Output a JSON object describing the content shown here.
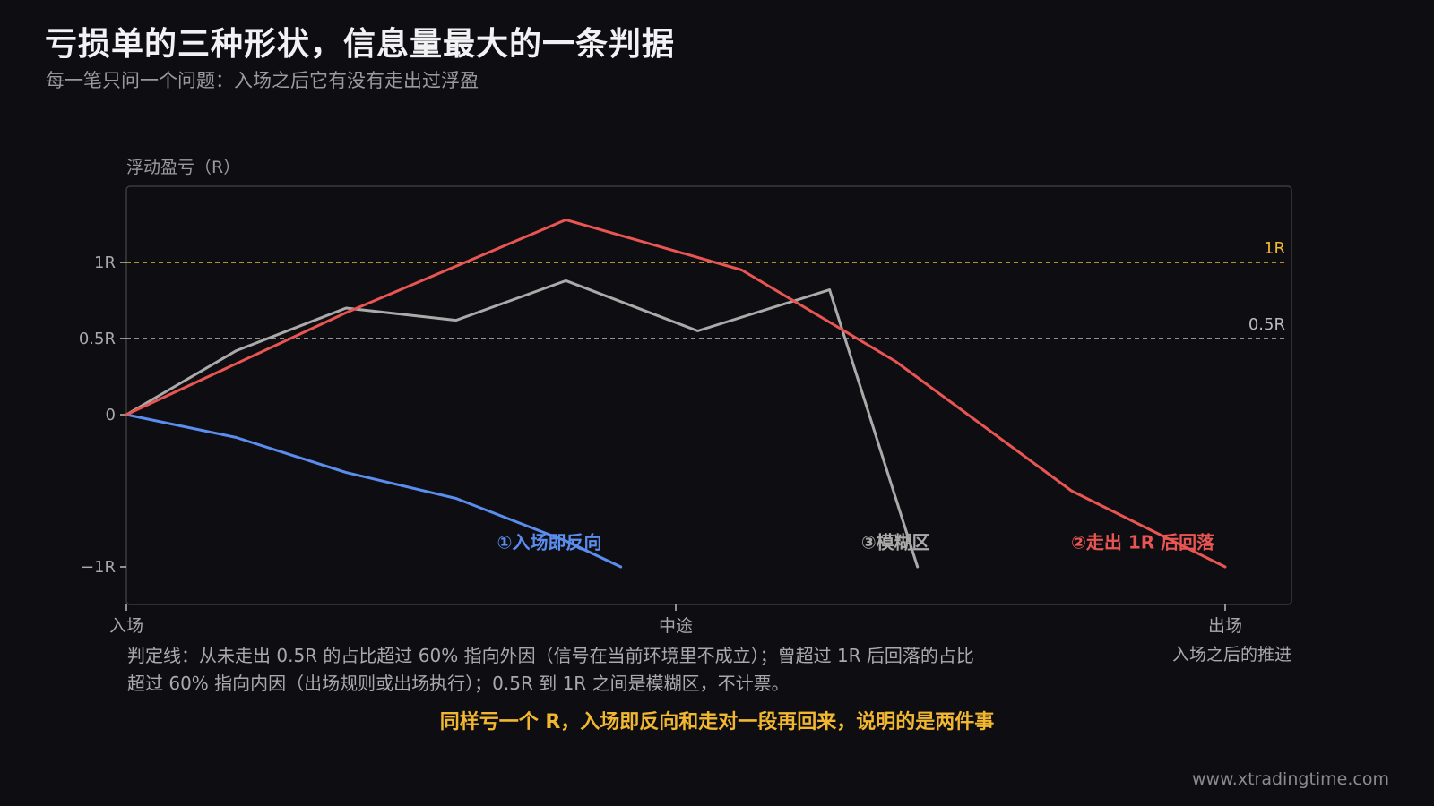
{
  "header": {
    "title": "亏损单的三种形状，信息量最大的一条判据",
    "subtitle": "每一笔只问一个问题：入场之后它有没有走出过浮盈"
  },
  "chart_data": {
    "type": "line",
    "ylabel": "浮动盈亏（R）",
    "xlabel": "入场之后的推进",
    "x_ticks": [
      {
        "x": 0,
        "label": "入场"
      },
      {
        "x": 0.5,
        "label": "中途"
      },
      {
        "x": 1,
        "label": "出场"
      }
    ],
    "y_ticks": [
      {
        "y": 1,
        "label": "1R"
      },
      {
        "y": 0.5,
        "label": "0.5R"
      },
      {
        "y": 0,
        "label": "0"
      },
      {
        "y": -1,
        "label": "−1R"
      }
    ],
    "xlim": [
      0,
      1.06
    ],
    "ylim": [
      -1.25,
      1.5
    ],
    "reference_lines": [
      {
        "y": 1,
        "label": "1R",
        "color": "#f2b731"
      },
      {
        "y": 0.5,
        "label": "0.5R",
        "color": "#bbbbbb"
      }
    ],
    "series": [
      {
        "name": "①入场即反向",
        "color": "#5b8def",
        "points": [
          [
            0,
            0
          ],
          [
            0.1,
            -0.15
          ],
          [
            0.2,
            -0.38
          ],
          [
            0.3,
            -0.55
          ],
          [
            0.4,
            -0.83
          ],
          [
            0.45,
            -1.0
          ]
        ]
      },
      {
        "name": "③模糊区",
        "color": "#aaaaaa",
        "points": [
          [
            0,
            0
          ],
          [
            0.1,
            0.42
          ],
          [
            0.2,
            0.7
          ],
          [
            0.3,
            0.62
          ],
          [
            0.4,
            0.88
          ],
          [
            0.52,
            0.55
          ],
          [
            0.64,
            0.82
          ],
          [
            0.72,
            -1.0
          ]
        ]
      },
      {
        "name": "②走出 1R 后回落",
        "color": "#e85552",
        "points": [
          [
            0,
            0
          ],
          [
            0.2,
            0.67
          ],
          [
            0.4,
            1.28
          ],
          [
            0.56,
            0.95
          ],
          [
            0.7,
            0.35
          ],
          [
            0.86,
            -0.5
          ],
          [
            1.0,
            -1.0
          ]
        ]
      }
    ],
    "grid": false
  },
  "footer": {
    "verdict_line1": "判定线：从未走出 0.5R 的占比超过 60% 指向外因（信号在当前环境里不成立）；曾超过 1R 后回落的占比",
    "verdict_line2": "超过 60% 指向内因（出场规则或出场执行）；0.5R 到 1R 之间是模糊区，不计票。",
    "conclusion": "同样亏一个 R，入场即反向和走对一段再回来，说明的是两件事",
    "watermark": "www.xtradingtime.com"
  }
}
